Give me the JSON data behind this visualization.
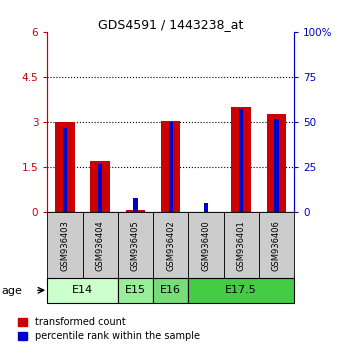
{
  "title": "GDS4591 / 1443238_at",
  "samples": [
    "GSM936403",
    "GSM936404",
    "GSM936405",
    "GSM936402",
    "GSM936400",
    "GSM936401",
    "GSM936406"
  ],
  "transformed_count": [
    3.0,
    1.72,
    0.07,
    3.03,
    0.0,
    3.5,
    3.28
  ],
  "percentile_rank": [
    47,
    27,
    8,
    50,
    5,
    57,
    52
  ],
  "ylim_left": [
    0,
    6
  ],
  "ylim_right": [
    0,
    100
  ],
  "yticks_left": [
    0,
    1.5,
    3.0,
    4.5,
    6.0
  ],
  "yticks_right": [
    0,
    25,
    50,
    75,
    100
  ],
  "ytick_labels_left": [
    "0",
    "1.5",
    "3",
    "4.5",
    "6"
  ],
  "ytick_labels_right": [
    "0",
    "25",
    "50",
    "75",
    "100%"
  ],
  "bar_color_red": "#CC0000",
  "bar_color_blue": "#0000CC",
  "red_bar_width": 0.55,
  "blue_bar_width": 0.12,
  "sample_bg_color": "#cccccc",
  "legend_red_label": "transformed count",
  "legend_blue_label": "percentile rank within the sample",
  "background_color": "#ffffff",
  "dotted_lines": [
    1.5,
    3.0,
    4.5
  ],
  "age_groups": [
    {
      "label": "E14",
      "start": 0,
      "end": 1,
      "color": "#ccffcc"
    },
    {
      "label": "E15",
      "start": 2,
      "end": 2,
      "color": "#99ee99"
    },
    {
      "label": "E16",
      "start": 3,
      "end": 3,
      "color": "#77dd77"
    },
    {
      "label": "E17.5",
      "start": 4,
      "end": 6,
      "color": "#44cc44"
    }
  ]
}
